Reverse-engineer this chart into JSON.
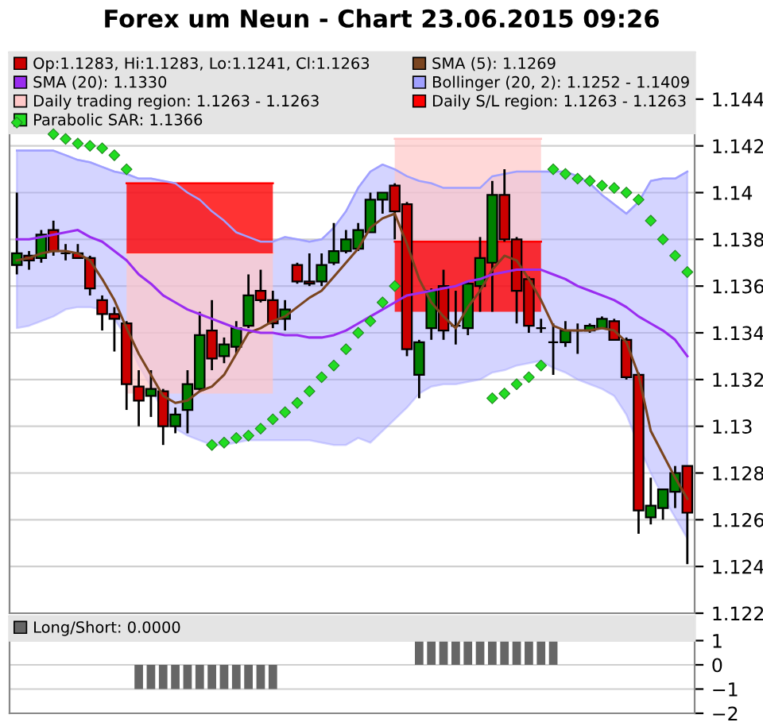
{
  "chart_data": [
    {
      "type": "candlestick",
      "title": "Forex um Neun - Chart 23.06.2015 09:26",
      "categories": [
        null,
        null,
        null,
        null,
        null,
        null,
        null,
        null,
        null,
        null,
        null,
        null,
        null,
        null,
        null,
        null,
        null,
        null,
        null,
        null,
        null,
        null,
        null,
        null,
        null,
        null,
        null,
        null,
        null,
        null,
        null,
        null,
        null,
        null,
        null,
        null,
        null,
        null,
        null,
        null,
        null,
        null,
        null,
        null,
        null,
        null,
        null,
        null,
        null,
        null,
        null,
        null,
        null,
        null,
        null,
        null
      ],
      "ylim": [
        1.122,
        1.146
      ],
      "yticks": [
        1.122,
        1.124,
        1.126,
        1.128,
        1.13,
        1.132,
        1.134,
        1.136,
        1.138,
        1.14,
        1.142,
        1.144
      ],
      "grid": "y",
      "legend": "top",
      "tick_labels": "y",
      "series": [
        {
          "name": "Op:1.1283, Hi:1.1283, Lo:1.1241, Cl:1.1263",
          "type": "candlestick",
          "color": "#cc0000",
          "colors": [
            "#008000",
            "#cc0000",
            "#008000",
            "#cc0000",
            "#000000",
            "#cc0000",
            "#cc0000",
            "#cc0000",
            "#cc0000",
            "#cc0000",
            "#cc0000",
            "#008000",
            "#cc0000",
            "#008000",
            "#008000",
            "#008000",
            "#cc0000",
            "#008000",
            "#008000",
            "#008000",
            "#cc0000",
            "#cc0000",
            "#008000",
            "#cc0000",
            "#cc0000",
            "#008000",
            "#008000",
            "#008000",
            "#008000",
            "#008000",
            "#008000",
            "#cc0000",
            "#cc0000",
            "#008000",
            "#008000",
            "#cc0000",
            "#000000",
            "#008000",
            "#008000",
            "#008000",
            "#cc0000",
            "#cc0000",
            "#cc0000",
            "#000000",
            "#000000",
            "#008000",
            "#000000",
            "#008000",
            "#008000",
            "#cc0000",
            "#cc0000",
            "#cc0000",
            "#008000",
            "#008000",
            "#008000",
            "#cc0000"
          ],
          "ohlc": [
            [
              1.1369,
              1.14,
              1.1365,
              1.1374
            ],
            [
              1.1373,
              1.1375,
              1.1367,
              1.1371
            ],
            [
              1.1372,
              1.1384,
              1.137,
              1.1382
            ],
            [
              1.1384,
              1.1388,
              1.1373,
              1.1375
            ],
            [
              1.1374,
              1.1378,
              1.1371,
              1.1374
            ],
            [
              1.1374,
              1.1378,
              1.1372,
              1.1372
            ],
            [
              1.1372,
              1.1373,
              1.1356,
              1.1359
            ],
            [
              1.1354,
              1.1356,
              1.1341,
              1.1348
            ],
            [
              1.1348,
              1.1351,
              1.1332,
              1.1346
            ],
            [
              1.1344,
              1.1345,
              1.1307,
              1.1318
            ],
            [
              1.1317,
              1.1324,
              1.13,
              1.1311
            ],
            [
              1.1313,
              1.1324,
              1.1304,
              1.1316
            ],
            [
              1.1315,
              1.1316,
              1.1292,
              1.13
            ],
            [
              1.13,
              1.1308,
              1.1297,
              1.1305
            ],
            [
              1.1307,
              1.1324,
              1.1297,
              1.1318
            ],
            [
              1.1316,
              1.1349,
              1.1315,
              1.1339
            ],
            [
              1.1341,
              1.1354,
              1.1324,
              1.1329
            ],
            [
              1.133,
              1.1338,
              1.1327,
              1.1335
            ],
            [
              1.1334,
              1.1345,
              1.1331,
              1.1342
            ],
            [
              1.1343,
              1.1365,
              1.1342,
              1.1356
            ],
            [
              1.1358,
              1.1367,
              1.1353,
              1.1354
            ],
            [
              1.1354,
              1.1358,
              1.1342,
              1.1344
            ],
            [
              1.1346,
              1.1354,
              1.1341,
              1.135
            ],
            [
              1.1369,
              1.137,
              1.1361,
              1.1362
            ],
            [
              1.1362,
              1.1374,
              1.136,
              1.1361
            ],
            [
              1.1362,
              1.1374,
              1.136,
              1.1369
            ],
            [
              1.137,
              1.1387,
              1.1369,
              1.1375
            ],
            [
              1.1375,
              1.1384,
              1.1374,
              1.138
            ],
            [
              1.1376,
              1.1387,
              1.1375,
              1.1384
            ],
            [
              1.1383,
              1.14,
              1.1383,
              1.1397
            ],
            [
              1.1397,
              1.14,
              1.1391,
              1.14
            ],
            [
              1.1403,
              1.1404,
              1.138,
              1.1392
            ],
            [
              1.1395,
              1.1396,
              1.133,
              1.1333
            ],
            [
              1.1322,
              1.1337,
              1.1312,
              1.1336
            ],
            [
              1.1342,
              1.1359,
              1.1337,
              1.1358
            ],
            [
              1.136,
              1.1367,
              1.1337,
              1.1341
            ],
            [
              1.1343,
              1.1358,
              1.1335,
              1.1343
            ],
            [
              1.1342,
              1.1362,
              1.1339,
              1.1361
            ],
            [
              1.136,
              1.1381,
              1.1349,
              1.1372
            ],
            [
              1.137,
              1.1405,
              1.1349,
              1.1399
            ],
            [
              1.1399,
              1.141,
              1.1379,
              1.138
            ],
            [
              1.138,
              1.1381,
              1.1344,
              1.1358
            ],
            [
              1.1363,
              1.1364,
              1.134,
              1.1343
            ],
            [
              1.1342,
              1.1346,
              1.134,
              1.1342
            ],
            [
              1.1336,
              1.1344,
              1.1322,
              1.1336
            ],
            [
              1.1336,
              1.1345,
              1.1334,
              1.1341
            ],
            [
              1.1341,
              1.1344,
              1.1331,
              1.1341
            ],
            [
              1.1341,
              1.1344,
              1.134,
              1.1343
            ],
            [
              1.1342,
              1.1347,
              1.1342,
              1.1346
            ],
            [
              1.1345,
              1.1346,
              1.1337,
              1.1337
            ],
            [
              1.1337,
              1.1338,
              1.132,
              1.1321
            ],
            [
              1.1322,
              1.1323,
              1.1254,
              1.1264
            ],
            [
              1.1261,
              1.1278,
              1.1258,
              1.1266
            ],
            [
              1.1265,
              1.1273,
              1.126,
              1.1273
            ],
            [
              1.1272,
              1.1283,
              1.1265,
              1.128
            ],
            [
              1.1283,
              1.1283,
              1.1241,
              1.1263
            ]
          ]
        },
        {
          "name": "SMA (5): 1.1269",
          "type": "line",
          "color": "#7a4520",
          "marker": "none",
          "line_style": "solid",
          "values": [
            1.1371,
            1.1372,
            1.1374,
            1.1375,
            1.1375,
            1.1374,
            1.1371,
            1.1363,
            1.1354,
            1.1342,
            1.1331,
            1.1322,
            1.1313,
            1.131,
            1.1311,
            1.1315,
            1.1317,
            1.1322,
            1.1331,
            1.134,
            1.1342,
            1.1345,
            1.1347,
            1.1351,
            1.1355,
            1.1358,
            1.1364,
            1.137,
            1.1376,
            1.1385,
            1.1389,
            1.1391,
            1.1378,
            1.1363,
            1.1353,
            1.1347,
            1.1342,
            1.1351,
            1.1358,
            1.1367,
            1.1373,
            1.1371,
            1.1363,
            1.1354,
            1.1343,
            1.1341,
            1.1341,
            1.1341,
            1.1342,
            1.1341,
            1.1336,
            1.1322,
            1.1298,
            1.1288,
            1.1278,
            1.1269
          ]
        },
        {
          "name": "SMA (20): 1.1330",
          "type": "line",
          "color": "#9a2cf0",
          "marker": "none",
          "line_style": "solid",
          "values": [
            1.138,
            1.138,
            1.1381,
            1.1382,
            1.1383,
            1.1384,
            1.1381,
            1.1379,
            1.1375,
            1.1371,
            1.1365,
            1.1361,
            1.1356,
            1.1353,
            1.135,
            1.1348,
            1.1346,
            1.1344,
            1.1342,
            1.1341,
            1.134,
            1.134,
            1.1339,
            1.1339,
            1.1338,
            1.1338,
            1.1339,
            1.1341,
            1.1344,
            1.1347,
            1.135,
            1.1353,
            1.1356,
            1.1357,
            1.1358,
            1.1359,
            1.136,
            1.1362,
            1.1363,
            1.1365,
            1.1366,
            1.1367,
            1.1367,
            1.1367,
            1.1365,
            1.1363,
            1.136,
            1.1358,
            1.1356,
            1.1354,
            1.1351,
            1.1347,
            1.1344,
            1.1341,
            1.1337,
            1.133
          ]
        },
        {
          "name": "Bollinger (20, 2): 1.1252 - 1.1409",
          "type": "line",
          "color": "#a0a0ff",
          "marker": "none",
          "line_style": "solid",
          "values": [
            1.1418,
            1.1418,
            1.1418,
            1.1418,
            1.1416,
            1.1414,
            1.1413,
            1.1411,
            1.1409,
            1.1408,
            1.1406,
            1.1406,
            1.1405,
            1.1404,
            1.14,
            1.1397,
            1.1392,
            1.1388,
            1.1383,
            1.1381,
            1.1379,
            1.1379,
            1.1381,
            1.138,
            1.1379,
            1.138,
            1.1385,
            1.1392,
            1.1402,
            1.1409,
            1.1412,
            1.141,
            1.1407,
            1.1405,
            1.1404,
            1.1402,
            1.1402,
            1.1402,
            1.1402,
            1.1407,
            1.1408,
            1.1409,
            1.1409,
            1.1409,
            1.1409,
            1.1409,
            1.1407,
            1.1404,
            1.1399,
            1.1395,
            1.1391,
            1.1396,
            1.1405,
            1.1406,
            1.1406,
            1.1409
          ],
          "upper": [
            1.1418,
            1.1418,
            1.1418,
            1.1418,
            1.1416,
            1.1414,
            1.1413,
            1.1411,
            1.1409,
            1.1408,
            1.1406,
            1.1406,
            1.1405,
            1.1404,
            1.14,
            1.1397,
            1.1392,
            1.1388,
            1.1383,
            1.1381,
            1.1379,
            1.1379,
            1.1381,
            1.138,
            1.1379,
            1.138,
            1.1385,
            1.1392,
            1.1402,
            1.1409,
            1.1412,
            1.141,
            1.1407,
            1.1405,
            1.1404,
            1.1402,
            1.1402,
            1.1402,
            1.1402,
            1.1407,
            1.1408,
            1.1409,
            1.1409,
            1.1409,
            1.1409,
            1.1409,
            1.1407,
            1.1404,
            1.1399,
            1.1395,
            1.1391,
            1.1396,
            1.1405,
            1.1406,
            1.1406,
            1.1409
          ],
          "lower": [
            1.1342,
            1.1343,
            1.1345,
            1.1347,
            1.135,
            1.1351,
            1.1351,
            1.135,
            1.1346,
            1.1338,
            1.1326,
            1.1317,
            1.1306,
            1.1299,
            1.1296,
            1.1294,
            1.1292,
            1.1292,
            1.1293,
            1.1294,
            1.1294,
            1.1294,
            1.1294,
            1.1294,
            1.1294,
            1.1293,
            1.1292,
            1.1292,
            1.1295,
            1.1293,
            1.1298,
            1.1303,
            1.1308,
            1.1314,
            1.1317,
            1.1318,
            1.1318,
            1.1319,
            1.132,
            1.1323,
            1.1324,
            1.1326,
            1.1327,
            1.1328,
            1.1325,
            1.1323,
            1.132,
            1.1318,
            1.1316,
            1.1313,
            1.1305,
            1.1292,
            1.128,
            1.127,
            1.1261,
            1.1252
          ]
        },
        {
          "name": "Daily trading region: 1.1263 - 1.1263",
          "type": "line",
          "color": "#ffc8c8",
          "marker": "none",
          "line_style": "solid",
          "values": [
            null,
            null,
            null,
            null,
            null,
            null,
            null,
            null,
            null,
            1.1374,
            1.1374,
            1.1374,
            1.1374,
            1.1374,
            1.1374,
            1.1374,
            1.1374,
            1.1374,
            1.1374,
            1.1374,
            1.1374,
            1.1374,
            null,
            null,
            null,
            null,
            null,
            null,
            null,
            null,
            null,
            1.1423,
            1.1423,
            1.1423,
            1.1423,
            1.1423,
            1.1423,
            1.1423,
            1.1423,
            1.1423,
            1.1423,
            1.1423,
            1.1423,
            1.1423,
            null,
            null,
            null,
            null,
            null,
            null,
            null,
            null,
            null,
            null,
            null,
            null
          ],
          "upper": [
            null,
            null,
            null,
            null,
            null,
            null,
            null,
            null,
            null,
            1.1374,
            1.1374,
            1.1374,
            1.1374,
            1.1374,
            1.1374,
            1.1374,
            1.1374,
            1.1374,
            1.1374,
            1.1374,
            1.1374,
            1.1374,
            null,
            null,
            null,
            null,
            null,
            null,
            null,
            null,
            null,
            1.1423,
            1.1423,
            1.1423,
            1.1423,
            1.1423,
            1.1423,
            1.1423,
            1.1423,
            1.1423,
            1.1423,
            1.1423,
            1.1423,
            1.1423,
            null,
            null,
            null,
            null,
            null,
            null,
            null,
            null,
            null,
            null,
            null,
            null
          ],
          "lower": [
            null,
            null,
            null,
            null,
            null,
            null,
            null,
            null,
            null,
            1.1314,
            1.1314,
            1.1314,
            1.1314,
            1.1314,
            1.1314,
            1.1314,
            1.1314,
            1.1314,
            1.1314,
            1.1314,
            1.1314,
            1.1314,
            null,
            null,
            null,
            null,
            null,
            null,
            null,
            null,
            null,
            1.1379,
            1.1379,
            1.1379,
            1.1379,
            1.1379,
            1.1379,
            1.1379,
            1.1379,
            1.1379,
            1.1379,
            1.1379,
            1.1379,
            1.1379,
            null,
            null,
            null,
            null,
            null,
            null,
            null,
            null,
            null,
            null,
            null,
            null
          ]
        },
        {
          "name": "Daily S/L region: 1.1263 - 1.1263",
          "type": "line",
          "color": "#ff0000",
          "marker": "none",
          "line_style": "solid",
          "values": [
            null,
            null,
            null,
            null,
            null,
            null,
            null,
            null,
            null,
            1.1404,
            1.1404,
            1.1404,
            1.1404,
            1.1404,
            1.1404,
            1.1404,
            1.1404,
            1.1404,
            1.1404,
            1.1404,
            1.1404,
            1.1404,
            null,
            null,
            null,
            null,
            null,
            null,
            null,
            null,
            null,
            1.1379,
            1.1379,
            1.1379,
            1.1379,
            1.1379,
            1.1379,
            1.1379,
            1.1379,
            1.1379,
            1.1379,
            1.1379,
            1.1379,
            1.1379,
            null,
            null,
            null,
            null,
            null,
            null,
            null,
            null,
            null,
            null,
            null,
            null
          ],
          "upper": [
            null,
            null,
            null,
            null,
            null,
            null,
            null,
            null,
            null,
            1.1404,
            1.1404,
            1.1404,
            1.1404,
            1.1404,
            1.1404,
            1.1404,
            1.1404,
            1.1404,
            1.1404,
            1.1404,
            1.1404,
            1.1404,
            null,
            null,
            null,
            null,
            null,
            null,
            null,
            null,
            null,
            1.1379,
            1.1379,
            1.1379,
            1.1379,
            1.1379,
            1.1379,
            1.1379,
            1.1379,
            1.1379,
            1.1379,
            1.1379,
            1.1379,
            1.1379,
            null,
            null,
            null,
            null,
            null,
            null,
            null,
            null,
            null,
            null,
            null,
            null
          ],
          "lower": [
            null,
            null,
            null,
            null,
            null,
            null,
            null,
            null,
            null,
            1.1374,
            1.1374,
            1.1374,
            1.1374,
            1.1374,
            1.1374,
            1.1374,
            1.1374,
            1.1374,
            1.1374,
            1.1374,
            1.1374,
            1.1374,
            null,
            null,
            null,
            null,
            null,
            null,
            null,
            null,
            null,
            1.1349,
            1.1349,
            1.1349,
            1.1349,
            1.1349,
            1.1349,
            1.1349,
            1.1349,
            1.1349,
            1.1349,
            1.1349,
            1.1349,
            1.1349,
            null,
            null,
            null,
            null,
            null,
            null,
            null,
            null,
            null,
            null,
            null,
            null
          ]
        },
        {
          "name": "Parabolic SAR: 1.1366",
          "type": "scatter",
          "color": "#22dd22",
          "marker": "diamond",
          "values": [
            1.143,
            null,
            null,
            1.1425,
            1.1423,
            1.1421,
            1.142,
            1.1419,
            1.1416,
            1.141,
            null,
            null,
            null,
            null,
            null,
            null,
            1.1292,
            1.1293,
            1.1295,
            1.1296,
            1.1299,
            1.1303,
            1.1306,
            1.131,
            1.1315,
            1.1321,
            1.1326,
            1.1333,
            1.134,
            1.1345,
            1.1353,
            1.136,
            null,
            null,
            null,
            null,
            null,
            null,
            null,
            1.1312,
            1.1314,
            1.1318,
            1.1321,
            1.1326,
            1.141,
            1.1408,
            1.1406,
            1.1405,
            1.1403,
            1.1402,
            1.14,
            1.1397,
            1.1388,
            1.138,
            1.1373,
            1.1366
          ]
        }
      ]
    },
    {
      "type": "bar",
      "categories": [
        null,
        null,
        null,
        null,
        null,
        null,
        null,
        null,
        null,
        null,
        null,
        null,
        null,
        null,
        null,
        null,
        null,
        null,
        null,
        null,
        null,
        null,
        null,
        null,
        null,
        null,
        null,
        null,
        null,
        null,
        null,
        null,
        null,
        null,
        null,
        null,
        null,
        null,
        null,
        null,
        null,
        null,
        null,
        null,
        null,
        null,
        null,
        null,
        null,
        null,
        null,
        null,
        null,
        null,
        null,
        null
      ],
      "ylim": [
        -2,
        2
      ],
      "yticks": [
        {
          "value": -2,
          "label": "−2"
        },
        {
          "value": -1,
          "label": "−1"
        },
        0,
        1
      ],
      "grid": "y",
      "legend": "top",
      "tick_labels": "y",
      "series": [
        {
          "name": "Long/Short: 0.0000",
          "color": "#666666",
          "values": [
            0,
            0,
            0,
            0,
            0,
            0,
            0,
            0,
            0,
            0,
            -1,
            -1,
            -1,
            -1,
            -1,
            -1,
            -1,
            -1,
            -1,
            -1,
            -1,
            -1,
            0,
            0,
            0,
            0,
            0,
            0,
            0,
            0,
            0,
            0,
            0,
            1,
            1,
            1,
            1,
            1,
            1,
            1,
            1,
            1,
            1,
            1,
            1,
            0,
            0,
            0,
            0,
            0,
            0,
            0,
            0,
            0,
            0,
            0
          ]
        }
      ]
    }
  ]
}
